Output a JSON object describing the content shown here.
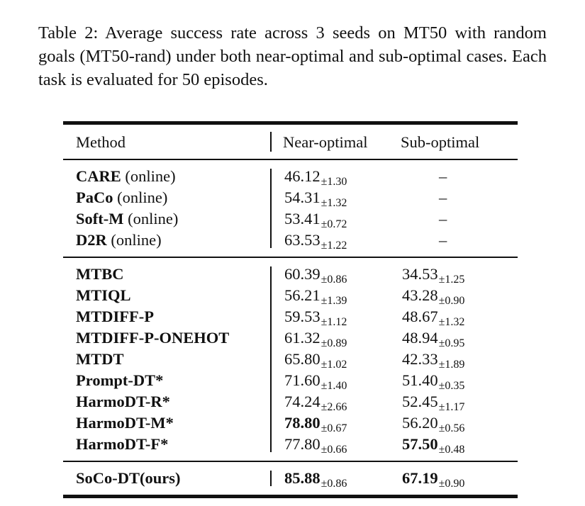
{
  "caption": "Table 2: Average success rate across 3 seeds on MT50 with random goals (MT50-rand) under both near-optimal and sub-optimal cases. Each task is evaluated for 50 episodes.",
  "table": {
    "headers": {
      "method": "Method",
      "near": "Near-optimal",
      "sub": "Sub-optimal"
    },
    "groups": [
      [
        {
          "name": "CARE",
          "suffix": " (online)",
          "near": "46.12",
          "near_std": "±1.30",
          "near_bold": false,
          "sub": "–",
          "sub_std": "",
          "sub_bold": false
        },
        {
          "name": "PaCo",
          "suffix": " (online)",
          "near": "54.31",
          "near_std": "±1.32",
          "near_bold": false,
          "sub": "–",
          "sub_std": "",
          "sub_bold": false
        },
        {
          "name": "Soft-M",
          "suffix": " (online)",
          "near": "53.41",
          "near_std": "±0.72",
          "near_bold": false,
          "sub": "–",
          "sub_std": "",
          "sub_bold": false
        },
        {
          "name": "D2R",
          "suffix": " (online)",
          "near": "63.53",
          "near_std": "±1.22",
          "near_bold": false,
          "sub": "–",
          "sub_std": "",
          "sub_bold": false
        }
      ],
      [
        {
          "name": "MTBC",
          "suffix": "",
          "near": "60.39",
          "near_std": "±0.86",
          "near_bold": false,
          "sub": "34.53",
          "sub_std": "±1.25",
          "sub_bold": false
        },
        {
          "name": "MTIQL",
          "suffix": "",
          "near": "56.21",
          "near_std": "±1.39",
          "near_bold": false,
          "sub": "43.28",
          "sub_std": "±0.90",
          "sub_bold": false
        },
        {
          "name": "MTDIFF-P",
          "suffix": "",
          "near": "59.53",
          "near_std": "±1.12",
          "near_bold": false,
          "sub": "48.67",
          "sub_std": "±1.32",
          "sub_bold": false
        },
        {
          "name": "MTDIFF-P-ONEHOT",
          "suffix": "",
          "near": "61.32",
          "near_std": "±0.89",
          "near_bold": false,
          "sub": "48.94",
          "sub_std": "±0.95",
          "sub_bold": false
        },
        {
          "name": "MTDT",
          "suffix": "",
          "near": "65.80",
          "near_std": "±1.02",
          "near_bold": false,
          "sub": "42.33",
          "sub_std": "±1.89",
          "sub_bold": false
        },
        {
          "name": "Prompt-DT*",
          "suffix": "",
          "near": "71.60",
          "near_std": "±1.40",
          "near_bold": false,
          "sub": "51.40",
          "sub_std": "±0.35",
          "sub_bold": false
        },
        {
          "name": "HarmoDT-R*",
          "suffix": "",
          "near": "74.24",
          "near_std": "±2.66",
          "near_bold": false,
          "sub": "52.45",
          "sub_std": "±1.17",
          "sub_bold": false
        },
        {
          "name": "HarmoDT-M*",
          "suffix": "",
          "near": "78.80",
          "near_std": "±0.67",
          "near_bold": true,
          "sub": "56.20",
          "sub_std": "±0.56",
          "sub_bold": false
        },
        {
          "name": "HarmoDT-F*",
          "suffix": "",
          "near": "77.80",
          "near_std": "±0.66",
          "near_bold": false,
          "sub": "57.50",
          "sub_std": "±0.48",
          "sub_bold": true
        }
      ],
      [
        {
          "name": "SoCo-DT(ours)",
          "suffix": "",
          "near": "85.88",
          "near_std": "±0.86",
          "near_bold": true,
          "sub": "67.19",
          "sub_std": "±0.90",
          "sub_bold": true
        }
      ]
    ]
  }
}
